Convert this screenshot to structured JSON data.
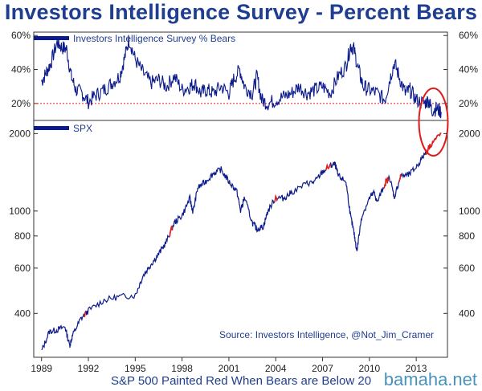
{
  "title": "Investors Intelligence Survey - Percent Bears",
  "caption": "S&P 500 Painted Red When Bears are Below 20",
  "watermark": "bamaha.net",
  "colors": {
    "series": "#0c1b8c",
    "highlight": "#e21a1a",
    "title": "#1f3e8f",
    "reference": "#e21a1a"
  },
  "chart_data": [
    {
      "type": "line",
      "legend": "Investors Intelligence Survey % Bears",
      "ylim": [
        10,
        62
      ],
      "yticks": [
        {
          "value": 20,
          "label": "20%"
        },
        {
          "value": 40,
          "label": "40%"
        },
        {
          "value": 60,
          "label": "60%"
        }
      ],
      "reference_line": 20,
      "series": [
        {
          "x": [
            1989.0,
            1989.3,
            1989.6,
            1990.0,
            1990.3,
            1990.6,
            1990.9,
            1991.2,
            1991.6,
            1992.0,
            1992.5,
            1993.0,
            1993.5,
            1994.0,
            1994.3,
            1994.6,
            1995.0,
            1995.5,
            1996.0,
            1996.5,
            1997.0,
            1997.5,
            1998.0,
            1998.5,
            1998.8,
            1999.2,
            1999.6,
            2000.0,
            2000.5,
            2001.0,
            2001.3,
            2001.7,
            2002.0,
            2002.5,
            2002.8,
            2003.1,
            2003.5,
            2004.0,
            2004.5,
            2005.0,
            2005.5,
            2006.0,
            2006.5,
            2007.0,
            2007.5,
            2008.0,
            2008.5,
            2008.8,
            2009.0,
            2009.3,
            2009.6,
            2010.0,
            2010.5,
            2011.0,
            2011.3,
            2011.6,
            2011.9,
            2012.3,
            2012.6,
            2013.0,
            2013.5,
            2013.8,
            2014.0,
            2014.3,
            2014.6
          ],
          "values": [
            33,
            38,
            44,
            56,
            53,
            52,
            36,
            28,
            26,
            21,
            25,
            28,
            32,
            36,
            46,
            58,
            46,
            38,
            32,
            34,
            30,
            36,
            28,
            30,
            32,
            26,
            28,
            26,
            30,
            26,
            34,
            40,
            30,
            26,
            36,
            22,
            20,
            22,
            24,
            26,
            30,
            26,
            28,
            30,
            26,
            36,
            42,
            54,
            52,
            40,
            30,
            28,
            26,
            22,
            34,
            44,
            36,
            26,
            28,
            22,
            20,
            22,
            16,
            17,
            15
          ]
        }
      ]
    },
    {
      "type": "line",
      "legend": "SPX",
      "scale": "log",
      "ylim": [
        270,
        2250
      ],
      "yticks": [
        {
          "value": 400,
          "label": "400"
        },
        {
          "value": 600,
          "label": "600"
        },
        {
          "value": 800,
          "label": "800"
        },
        {
          "value": 1000,
          "label": "1000"
        },
        {
          "value": 2000,
          "label": "2000"
        }
      ],
      "xlim": [
        1988.5,
        2015.0
      ],
      "xticks": [
        {
          "value": 1989,
          "label": "1989"
        },
        {
          "value": 1992,
          "label": "1992"
        },
        {
          "value": 1995,
          "label": "1995"
        },
        {
          "value": 1998,
          "label": "1998"
        },
        {
          "value": 2001,
          "label": "2001"
        },
        {
          "value": 2004,
          "label": "2004"
        },
        {
          "value": 2007,
          "label": "2007"
        },
        {
          "value": 2010,
          "label": "2010"
        },
        {
          "value": 2013,
          "label": "2013"
        }
      ],
      "series": [
        {
          "x": [
            1989.0,
            1989.5,
            1990.0,
            1990.5,
            1990.8,
            1991.0,
            1991.5,
            1992.0,
            1993.0,
            1994.0,
            1995.0,
            1995.5,
            1996.0,
            1996.5,
            1997.0,
            1997.5,
            1998.0,
            1998.5,
            1998.7,
            1999.0,
            1999.5,
            2000.0,
            2000.5,
            2001.0,
            2001.5,
            2001.75,
            2002.0,
            2002.5,
            2002.8,
            2003.2,
            2003.5,
            2004.0,
            2004.5,
            2005.0,
            2006.0,
            2006.5,
            2007.0,
            2007.5,
            2007.8,
            2008.0,
            2008.5,
            2008.8,
            2009.0,
            2009.2,
            2009.5,
            2010.0,
            2010.3,
            2010.5,
            2011.0,
            2011.3,
            2011.6,
            2012.0,
            2012.5,
            2013.0,
            2013.5,
            2014.0,
            2014.6
          ],
          "values": [
            285,
            340,
            345,
            355,
            300,
            330,
            380,
            410,
            450,
            465,
            470,
            560,
            620,
            680,
            760,
            900,
            960,
            1120,
            990,
            1230,
            1300,
            1400,
            1450,
            1300,
            1200,
            1000,
            1130,
            900,
            850,
            870,
            1000,
            1130,
            1120,
            1180,
            1280,
            1300,
            1420,
            1500,
            1520,
            1370,
            1300,
            950,
            830,
            700,
            950,
            1120,
            1180,
            1080,
            1280,
            1350,
            1130,
            1370,
            1380,
            1480,
            1650,
            1840,
            2000
          ]
        }
      ],
      "highlight_ranges": [
        [
          1991.75,
          1991.85
        ],
        [
          1997.2,
          1997.4
        ],
        [
          2003.9,
          2004.1
        ],
        [
          2007.2,
          2007.5
        ],
        [
          2010.9,
          2011.2
        ],
        [
          2011.9,
          2012.05
        ],
        [
          2013.6,
          2014.6
        ]
      ]
    }
  ],
  "source": "Source: Investors Intelligence, @Not_Jim_Cramer"
}
